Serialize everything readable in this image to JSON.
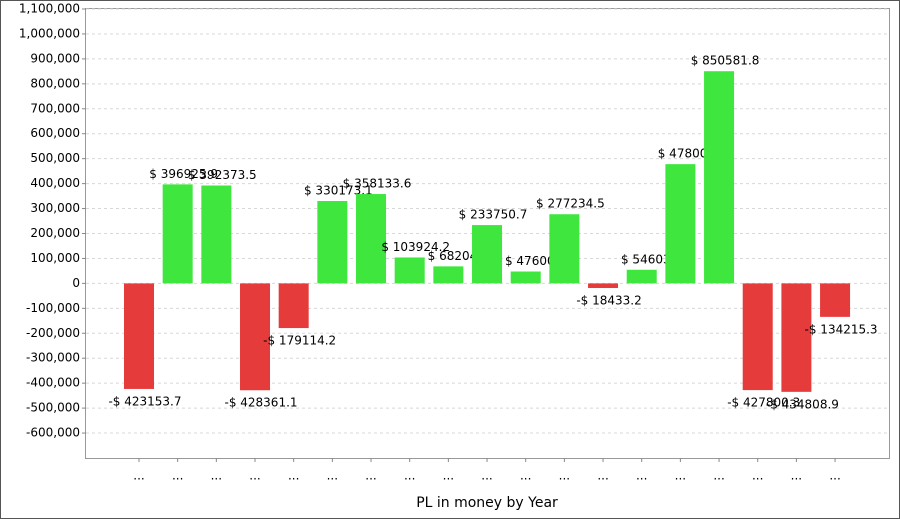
{
  "chart_data": {
    "type": "bar",
    "x_label": "PL in money by Year",
    "categories": [
      "...",
      "...",
      "...",
      "...",
      "...",
      "...",
      "...",
      "...",
      "...",
      "...",
      "...",
      "...",
      "...",
      "...",
      "...",
      "...",
      "...",
      "...",
      "..."
    ],
    "values": [
      -423153.7,
      396925.9,
      392373.5,
      -428361.1,
      -179114.2,
      330173.1,
      358133.6,
      103924.2,
      68204,
      233750.7,
      47600,
      277234.5,
      -18433.2,
      54603,
      478000,
      850581.8,
      -427800.3,
      -434808.9,
      -134215.3
    ],
    "value_labels": [
      "-$ 423153.7",
      "$ 396925.9",
      "$ 392373.5",
      "-$ 428361.1",
      "-$ 179114.2",
      "$ 330173.1",
      "$ 358133.6",
      "$ 103924.2",
      "$ 68204.",
      "$ 233750.7",
      "$ 47600.",
      "$ 277234.5",
      "-$ 18433.2",
      "$ 54603.",
      "$ 478000",
      "$ 850581.8",
      "-$ 427800.3",
      "-$ 434808.9",
      "-$ 134215.3"
    ],
    "positive_color": "#3ee63e",
    "negative_color": "#e63b3b",
    "ylim": [
      -700000,
      1100000
    ],
    "yticks": [
      {
        "value": -600000,
        "label": "-600,000"
      },
      {
        "value": -500000,
        "label": "-500,000"
      },
      {
        "value": -400000,
        "label": "-400,000"
      },
      {
        "value": -300000,
        "label": "-300,000"
      },
      {
        "value": -200000,
        "label": "-200,000"
      },
      {
        "value": -100000,
        "label": "-100,000"
      },
      0,
      {
        "value": 100000,
        "label": "100,000"
      },
      {
        "value": 200000,
        "label": "200,000"
      },
      {
        "value": 300000,
        "label": "300,000"
      },
      {
        "value": 400000,
        "label": "400,000"
      },
      {
        "value": 500000,
        "label": "500,000"
      },
      {
        "value": 600000,
        "label": "600,000"
      },
      {
        "value": 700000,
        "label": "700,000"
      },
      {
        "value": 800000,
        "label": "800,000"
      },
      {
        "value": 900000,
        "label": "900,000"
      },
      {
        "value": 1000000,
        "label": "1,000,000"
      },
      {
        "value": 1100000,
        "label": "1,100,000"
      }
    ],
    "grid": true
  }
}
